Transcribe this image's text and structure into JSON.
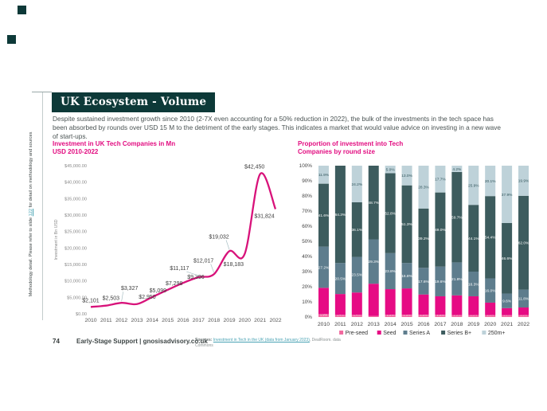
{
  "slide": {
    "title": "UK Ecosystem - Volume",
    "paragraph": "Despite sustained investment growth since 2010 (2-7X even accounting for a 50% reduction in 2022), the bulk of the investments in the tech space has been absorbed by rounds over USD 15 M to the detriment of the early stages. This indicates a market that would value advice on investing in a new wave of start-ups."
  },
  "sidebar": {
    "methodology_prefix": "Methodology detail. Please refer to slide ",
    "methodology_link_text": "122",
    "methodology_suffix": " for detail on methodology and sources"
  },
  "footer": {
    "page_number": "74",
    "brand_text": "Early-Stage Support | gnosisadvisory.co.uk",
    "sources_label": "Sources:",
    "sources_link_text": "Investment in Tech in the UK (data from January 2023)",
    "sources_suffix": ", DealRoom. data Commons"
  },
  "colors": {
    "title_box": "#0d3938",
    "accent_magenta": "#e20c80",
    "link_teal": "#3f9fb0"
  },
  "chart_data": [
    {
      "type": "line",
      "title": "Investment in UK Tech Companies in Mn USD 2010-2022",
      "ylabel": "Investment in Bn USD",
      "x": [
        "2010",
        "2011",
        "2012",
        "2013",
        "2014",
        "2015",
        "2016",
        "2017",
        "2018",
        "2019",
        "2020",
        "2021",
        "2022"
      ],
      "values": [
        2101,
        2503,
        3327,
        2950,
        5099,
        7298,
        9396,
        11117,
        12017,
        19032,
        18183,
        42450,
        31824
      ],
      "point_labels": [
        "$2,101",
        "$2,503",
        "$3,327",
        "$2,950",
        "$5,099",
        "$7,298",
        "$9,396",
        "$11,117",
        "$12,017",
        "$19,032",
        "$18,183",
        "$42,450",
        "$31,824"
      ],
      "y_ticks": [
        "$0.00",
        "$5,000.00",
        "$10,000.00",
        "$15,000.00",
        "$20,000.00",
        "$25,000.00",
        "$30,000.00",
        "$35,000.00",
        "$40,000.00",
        "$45,000.00"
      ],
      "ylim": [
        0,
        45000
      ],
      "grid": false,
      "legend": "none",
      "line_color": "#d8127a"
    },
    {
      "type": "bar",
      "stacked": true,
      "title": "Proportion of investment into Tech Companies by round size",
      "categories": [
        "2010",
        "2011",
        "2012",
        "2013",
        "2014",
        "2015",
        "2016",
        "2017",
        "2018",
        "2019",
        "2020",
        "2021",
        "2022"
      ],
      "series": [
        {
          "name": "Pre-seed",
          "color": "#f1699f",
          "values": [
            1.9,
            1.4,
            1.4,
            0.7,
            1.5,
            1.5,
            1.5,
            1.5,
            1.3,
            1.3,
            1.3,
            1.2,
            1.3
          ]
        },
        {
          "name": "Seed",
          "color": "#e60b84",
          "values": [
            17.4,
            13.8,
            14.8,
            21.3,
            16.9,
            17.4,
            13.4,
            12.2,
            13.0,
            12.4,
            8.2,
            4.7,
            5.0
          ]
        },
        {
          "name": "Series A",
          "color": "#5e7d8d",
          "values": [
            27.2,
            20.5,
            23.5,
            29.3,
            23.8,
            16.8,
            17.6,
            19.6,
            21.8,
            16.3,
            16.0,
            9.6,
            11.8
          ]
        },
        {
          "name": "Series B+",
          "color": "#3d5c5e",
          "values": [
            41.6,
            64.3,
            36.1,
            48.7,
            52.8,
            51.3,
            39.2,
            49.0,
            59.7,
            44.1,
            54.4,
            46.6,
            62.0
          ]
        },
        {
          "name": "250m+",
          "color": "#bed2d9",
          "values": [
            11.9,
            0.0,
            24.2,
            0.0,
            5.0,
            13.0,
            28.3,
            17.7,
            4.2,
            25.9,
            20.1,
            37.9,
            19.9
          ]
        }
      ],
      "y_ticks": [
        "0%",
        "10%",
        "20%",
        "30%",
        "40%",
        "50%",
        "60%",
        "70%",
        "80%",
        "90%",
        "100%"
      ],
      "ylim": [
        0,
        100
      ],
      "grid": false,
      "legend_position": "bottom"
    }
  ]
}
